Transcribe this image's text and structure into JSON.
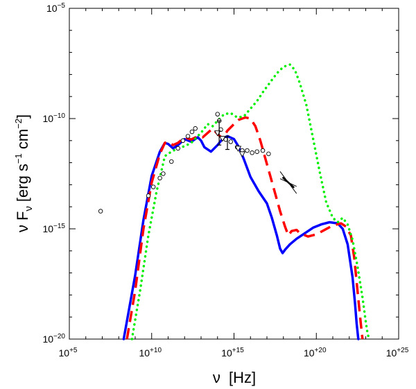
{
  "chart_data": {
    "type": "line",
    "title": "",
    "xlabel": {
      "sym": "ν",
      "unit": "[Hz]"
    },
    "ylabel": {
      "pre": "ν F",
      "sub": "ν",
      "unit_open": "[erg s",
      "sup1": "−1",
      "unit_mid": " cm",
      "sup2": "−2",
      "unit_close": "]"
    },
    "x_scale": "log",
    "y_scale": "log",
    "xlim_log10": [
      5,
      25
    ],
    "ylim_log10": [
      -20,
      -5
    ],
    "x_ticks": [
      {
        "log10": 5,
        "base": "10",
        "exp": "+5"
      },
      {
        "log10": 10,
        "base": "10",
        "exp": "+10"
      },
      {
        "log10": 15,
        "base": "10",
        "exp": "+15"
      },
      {
        "log10": 20,
        "base": "10",
        "exp": "+20"
      },
      {
        "log10": 25,
        "base": "10",
        "exp": "+25"
      }
    ],
    "y_ticks": [
      {
        "log10": -5,
        "base": "10",
        "exp": "−5"
      },
      {
        "log10": -10,
        "base": "10",
        "exp": "−10"
      },
      {
        "log10": -15,
        "base": "10",
        "exp": "−15"
      },
      {
        "log10": -20,
        "base": "10",
        "exp": "−20"
      }
    ],
    "series": [
      {
        "name": "model-solid-blue",
        "color": "#0000ff",
        "style": "solid",
        "x_log10": [
          8.3,
          9,
          9.5,
          10,
          10.5,
          10.8,
          11,
          11.3,
          11.6,
          12,
          12.4,
          12.8,
          13,
          13.2,
          13.6,
          14,
          14.3,
          14.6,
          15,
          15.3,
          15.6,
          16,
          16.5,
          17,
          17.3,
          17.6,
          17.8,
          17.95,
          18.1,
          18.4,
          18.8,
          19.3,
          19.8,
          20.3,
          20.8,
          21.3,
          21.6,
          21.9,
          22.2,
          22.35,
          22.45,
          22.55
        ],
        "y_log10": [
          -20,
          -17.1,
          -14.6,
          -12.6,
          -11.5,
          -11.1,
          -11.15,
          -11.35,
          -11.2,
          -10.93,
          -11.05,
          -10.85,
          -11.0,
          -11.3,
          -11.5,
          -11.2,
          -10.92,
          -10.8,
          -10.93,
          -11.3,
          -11.85,
          -12.65,
          -13.3,
          -13.85,
          -14.5,
          -15.3,
          -15.9,
          -16.1,
          -15.95,
          -15.7,
          -15.45,
          -15.2,
          -14.95,
          -14.8,
          -14.7,
          -14.75,
          -15.0,
          -15.7,
          -17.2,
          -18.4,
          -19.3,
          -20
        ]
      },
      {
        "name": "model-dashed-red",
        "color": "#ff0000",
        "style": "dashed",
        "x_log10": [
          8.5,
          9,
          9.5,
          10,
          10.5,
          10.8,
          11,
          11.3,
          11.6,
          12,
          12.4,
          12.8,
          13.1,
          13.4,
          13.7,
          14,
          14.3,
          14.6,
          15,
          15.3,
          15.7,
          16,
          16.3,
          16.6,
          16.9,
          17.2,
          17.5,
          17.8,
          18.1,
          18.3,
          18.5,
          18.8,
          19,
          19.5,
          20,
          20.5,
          21,
          21.5,
          21.8,
          22.1,
          22.3,
          22.5,
          22.7,
          22.8
        ],
        "y_log10": [
          -20,
          -17.8,
          -15.0,
          -12.9,
          -11.6,
          -11.1,
          -11.05,
          -11.2,
          -11.1,
          -10.85,
          -10.95,
          -10.8,
          -10.85,
          -10.65,
          -10.45,
          -10.7,
          -10.9,
          -10.55,
          -10.25,
          -10.05,
          -9.95,
          -10.0,
          -10.35,
          -11.0,
          -11.8,
          -12.6,
          -13.4,
          -14.2,
          -14.9,
          -15.3,
          -15.1,
          -15.05,
          -15.2,
          -15.35,
          -15.25,
          -15.05,
          -14.85,
          -14.75,
          -14.9,
          -15.3,
          -16.3,
          -17.8,
          -19.3,
          -20
        ]
      },
      {
        "name": "model-dotted-green",
        "color": "#00ee00",
        "style": "dotted",
        "x_log10": [
          8.8,
          9.3,
          9.8,
          10.3,
          10.8,
          11.2,
          11.6,
          12,
          12.4,
          12.8,
          13.1,
          13.4,
          13.7,
          14,
          14.4,
          14.8,
          15.2,
          15.6,
          16,
          16.4,
          16.8,
          17.2,
          17.6,
          18,
          18.4,
          18.7,
          19,
          19.4,
          19.8,
          20.2,
          20.6,
          21,
          21.3,
          21.6,
          21.9,
          22.2,
          22.5,
          22.8,
          23.0,
          23.1,
          23.2
        ],
        "y_log10": [
          -20,
          -17.8,
          -15.3,
          -13.3,
          -11.7,
          -11.5,
          -11.35,
          -11.25,
          -11.1,
          -10.8,
          -10.55,
          -10.25,
          -10.35,
          -10.1,
          -9.8,
          -9.75,
          -9.95,
          -9.9,
          -9.55,
          -9.2,
          -8.75,
          -8.35,
          -7.95,
          -7.65,
          -7.55,
          -7.8,
          -8.4,
          -9.4,
          -10.9,
          -12.4,
          -13.8,
          -14.5,
          -14.7,
          -14.5,
          -14.8,
          -15.5,
          -16.7,
          -18.1,
          -19.2,
          -19.7,
          -20
        ]
      }
    ],
    "observations": {
      "circles": [
        [
          6.9,
          -14.2
        ],
        [
          9.8,
          -13.5
        ],
        [
          10.1,
          -13.1
        ],
        [
          10.5,
          -12.7
        ],
        [
          10.7,
          -12.5
        ],
        [
          11.2,
          -11.95
        ],
        [
          11.6,
          -11.35
        ],
        [
          11.9,
          -11.0
        ],
        [
          12.2,
          -10.8
        ],
        [
          12.45,
          -10.6
        ],
        [
          12.65,
          -10.45
        ],
        [
          14.0,
          -9.8
        ],
        [
          14.1,
          -10.1
        ],
        [
          14.2,
          -10.5
        ],
        [
          14.5,
          -10.95
        ],
        [
          14.8,
          -11.05
        ],
        [
          15.2,
          -11.3
        ],
        [
          15.5,
          -11.45
        ],
        [
          15.8,
          -11.45
        ],
        [
          16.1,
          -11.55
        ],
        [
          16.4,
          -11.5
        ],
        [
          16.75,
          -11.45
        ],
        [
          17.1,
          -11.6
        ]
      ],
      "upper_limits": [
        [
          14.0,
          -10.65
        ],
        [
          14.3,
          -10.9
        ],
        [
          15.25,
          -11.35
        ],
        [
          15.5,
          -11.6
        ]
      ],
      "error_bars": [
        {
          "x": 14.1,
          "y_low": -11.2,
          "y_high": -10.1
        },
        {
          "x": 14.6,
          "y_low": -11.4,
          "y_high": -10.8
        }
      ],
      "bowtie": {
        "center": [
          18.3,
          -12.9
        ],
        "slope_a": -1.0,
        "slope_b": -0.35,
        "half_width": 0.5
      }
    }
  }
}
